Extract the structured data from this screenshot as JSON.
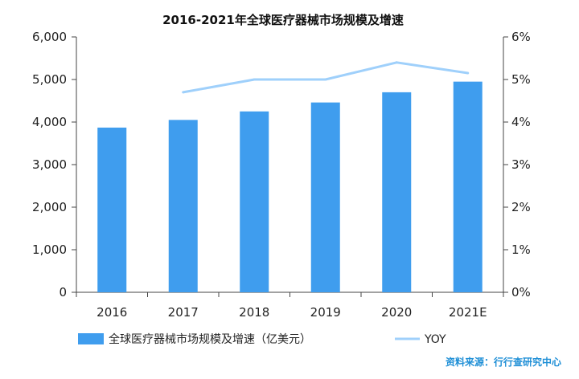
{
  "chart_data": {
    "type": "bar",
    "title": "2016-2021年全球医疗器械市场规模及增速",
    "categories": [
      "2016",
      "2017",
      "2018",
      "2019",
      "2020",
      "2021E"
    ],
    "series": [
      {
        "name": "全球医疗器械市场规模及增速（亿美元）",
        "type": "bar",
        "axis": "left",
        "values": [
          3870,
          4050,
          4250,
          4460,
          4700,
          4950
        ],
        "color": "#3f9dee"
      },
      {
        "name": "YOY",
        "type": "line",
        "axis": "right",
        "values": [
          null,
          4.7,
          5.0,
          5.0,
          5.4,
          5.15
        ],
        "color": "#9fd0fb"
      }
    ],
    "y_left": {
      "ylim": [
        0,
        6000
      ],
      "ticks": [
        "0",
        "1,000",
        "2,000",
        "3,000",
        "4,000",
        "5,000",
        "6,000"
      ]
    },
    "y_right": {
      "ylim": [
        0,
        6
      ],
      "ticks": [
        "0%",
        "1%",
        "2%",
        "3%",
        "4%",
        "5%",
        "6%"
      ]
    },
    "grid": false,
    "legend_placement": "bottom"
  },
  "source_text": "资料来源：行行查研究中心"
}
